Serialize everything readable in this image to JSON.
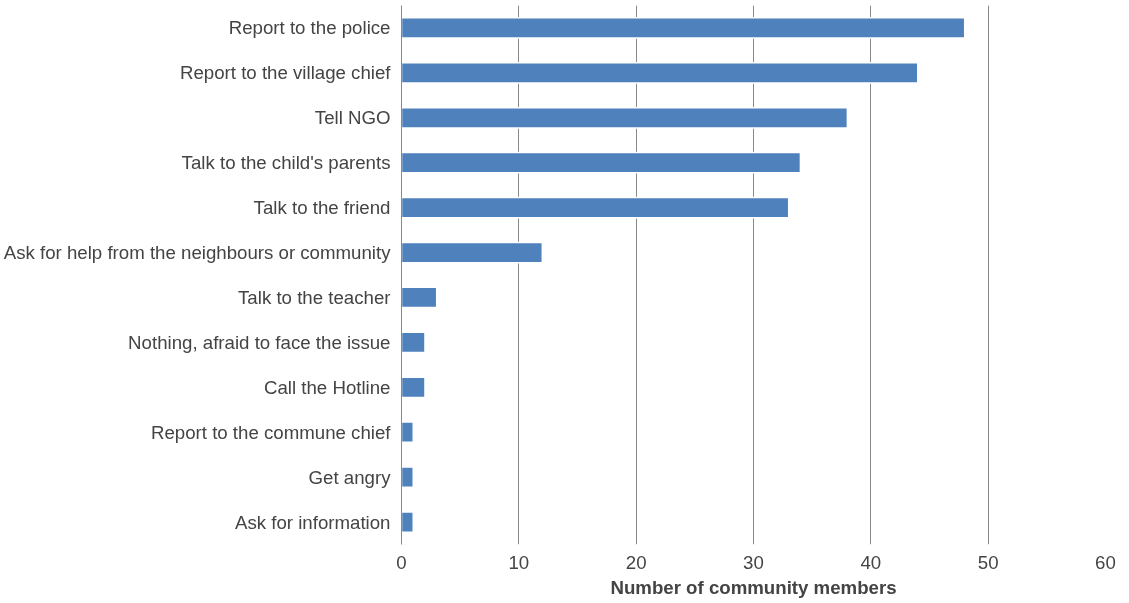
{
  "chart_data": {
    "type": "bar",
    "orientation": "horizontal",
    "xlabel": "Number of community members",
    "categories": [
      "Report to the police",
      "Report to the village chief",
      "Tell NGO",
      "Talk to the child's parents",
      "Talk to the friend",
      "Ask for help from the neighbours or community",
      "Talk to the teacher",
      "Nothing, afraid to face the issue",
      "Call the Hotline",
      "Report to the commune chief",
      "Get angry",
      "Ask for information"
    ],
    "values": [
      48,
      44,
      38,
      34,
      33,
      12,
      3,
      2,
      2,
      1,
      1,
      1
    ],
    "color": "#4f81bd",
    "xlim": [
      0,
      60
    ],
    "xticks": [
      0,
      10,
      20,
      30,
      40,
      50,
      60
    ],
    "grid": "x"
  }
}
